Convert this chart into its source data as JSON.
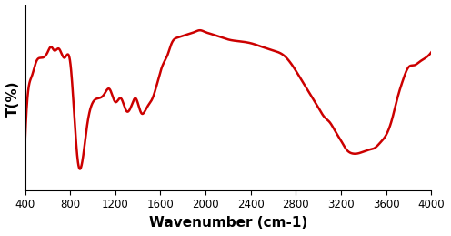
{
  "xlabel": "Wavenumber (cm-1)",
  "ylabel": "T(%)",
  "line_color": "#cc0000",
  "line_width": 1.8,
  "xlim": [
    400,
    4000
  ],
  "xticks": [
    400,
    800,
    1200,
    1600,
    2000,
    2400,
    2800,
    3200,
    3600,
    4000
  ],
  "background_color": "#ffffff",
  "xlabel_fontsize": 11,
  "ylabel_fontsize": 11,
  "keypoints_x": [
    400,
    430,
    460,
    500,
    550,
    600,
    630,
    660,
    700,
    750,
    800,
    870,
    950,
    1050,
    1100,
    1150,
    1200,
    1250,
    1300,
    1350,
    1380,
    1430,
    1480,
    1530,
    1580,
    1620,
    1660,
    1700,
    1750,
    1800,
    1850,
    1900,
    1950,
    2000,
    2050,
    2100,
    2150,
    2200,
    2300,
    2400,
    2500,
    2600,
    2700,
    2800,
    2850,
    2900,
    2950,
    3000,
    3050,
    3100,
    3150,
    3200,
    3250,
    3300,
    3350,
    3400,
    3450,
    3500,
    3550,
    3600,
    3650,
    3700,
    3750,
    3800,
    3850,
    3900,
    3950,
    4000
  ],
  "keypoints_y": [
    0.25,
    0.55,
    0.62,
    0.7,
    0.72,
    0.75,
    0.78,
    0.76,
    0.77,
    0.72,
    0.7,
    0.15,
    0.35,
    0.5,
    0.52,
    0.55,
    0.48,
    0.5,
    0.43,
    0.47,
    0.5,
    0.42,
    0.45,
    0.5,
    0.6,
    0.68,
    0.73,
    0.8,
    0.83,
    0.84,
    0.85,
    0.86,
    0.87,
    0.86,
    0.85,
    0.84,
    0.83,
    0.82,
    0.81,
    0.8,
    0.78,
    0.76,
    0.73,
    0.65,
    0.6,
    0.55,
    0.5,
    0.45,
    0.4,
    0.37,
    0.32,
    0.27,
    0.22,
    0.2,
    0.2,
    0.21,
    0.22,
    0.23,
    0.26,
    0.3,
    0.38,
    0.5,
    0.6,
    0.67,
    0.68,
    0.7,
    0.72,
    0.75
  ]
}
